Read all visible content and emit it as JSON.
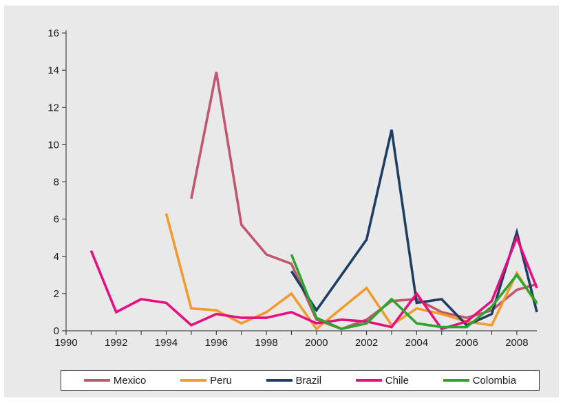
{
  "chart_data": {
    "type": "line",
    "title": "",
    "xlabel": "",
    "ylabel": "",
    "xlim": [
      1990,
      2008.8
    ],
    "ylim": [
      0,
      16
    ],
    "grid": false,
    "legend_position": "bottom",
    "x_ticks": [
      "1990",
      "1992",
      "1994",
      "1996",
      "1998",
      "2000",
      "2002",
      "2004",
      "2006",
      "2008"
    ],
    "y_ticks": [
      "0",
      "2",
      "4",
      "6",
      "8",
      "10",
      "12",
      "14",
      "16"
    ],
    "series": [
      {
        "name": "Mexico",
        "color": "#c0566f",
        "x": [
          1995,
          1996,
          1997,
          1998,
          1999,
          2000,
          2001,
          2002,
          2003,
          2004,
          2005,
          2006,
          2007,
          2008,
          2008.8
        ],
        "y": [
          7.1,
          13.9,
          5.7,
          4.1,
          3.6,
          0.6,
          0.1,
          0.6,
          1.6,
          1.7,
          1.0,
          0.7,
          1.1,
          2.2,
          2.5
        ]
      },
      {
        "name": "Peru",
        "color": "#f39a2c",
        "x": [
          1994,
          1995,
          1996,
          1997,
          1998,
          1999,
          2000,
          2001,
          2002,
          2003,
          2004,
          2005,
          2006,
          2007,
          2008,
          2008.8
        ],
        "y": [
          6.3,
          1.2,
          1.1,
          0.4,
          1.0,
          2.0,
          0.1,
          1.2,
          2.3,
          0.3,
          1.2,
          0.9,
          0.5,
          0.3,
          3.1,
          1.4
        ]
      },
      {
        "name": "Brazil",
        "color": "#1f3f62",
        "x": [
          1999,
          2000,
          2001,
          2002,
          2003,
          2004,
          2005,
          2006,
          2007,
          2008,
          2008.8
        ],
        "y": [
          3.2,
          1.1,
          3.0,
          4.9,
          10.8,
          1.5,
          1.7,
          0.3,
          0.9,
          5.3,
          1.0
        ]
      },
      {
        "name": "Chile",
        "color": "#e60f80",
        "x": [
          1991,
          1992,
          1993,
          1994,
          1995,
          1996,
          1997,
          1998,
          1999,
          2000,
          2001,
          2002,
          2003,
          2004,
          2005,
          2006,
          2007,
          2008,
          2008.8
        ],
        "y": [
          4.3,
          1.0,
          1.7,
          1.5,
          0.3,
          0.9,
          0.7,
          0.7,
          1.0,
          0.4,
          0.6,
          0.5,
          0.2,
          2.0,
          0.1,
          0.5,
          1.6,
          5.0,
          2.3
        ]
      },
      {
        "name": "Colombia",
        "color": "#2ba52b",
        "x": [
          1999,
          2000,
          2001,
          2002,
          2003,
          2004,
          2005,
          2006,
          2007,
          2008,
          2008.8
        ],
        "y": [
          4.1,
          0.7,
          0.1,
          0.4,
          1.7,
          0.4,
          0.2,
          0.2,
          1.3,
          3.0,
          1.5
        ]
      }
    ]
  }
}
